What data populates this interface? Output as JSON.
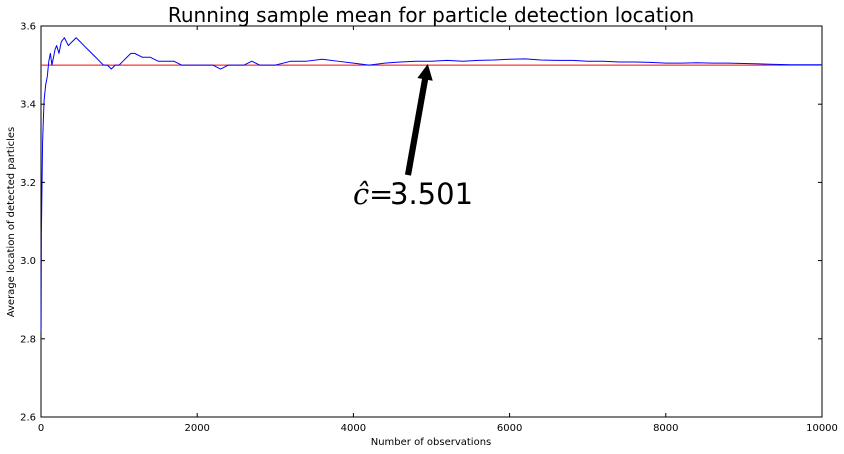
{
  "chart_data": {
    "type": "line",
    "title": "Running sample mean for particle detection location",
    "xlabel": "Number of observations",
    "ylabel": "Average location of detected particles",
    "xlim": [
      0,
      10000
    ],
    "ylim": [
      2.6,
      3.6
    ],
    "xticks": [
      "0",
      "2000",
      "4000",
      "6000",
      "8000",
      "10000"
    ],
    "yticks": [
      "2.6",
      "2.8",
      "3.0",
      "3.2",
      "3.4",
      "3.6"
    ],
    "grid": false,
    "series": [
      {
        "color": "#0000ff",
        "x": [
          1,
          5,
          10,
          20,
          30,
          40,
          50,
          60,
          70,
          80,
          90,
          100,
          120,
          140,
          160,
          180,
          200,
          230,
          260,
          300,
          350,
          400,
          450,
          500,
          550,
          600,
          650,
          700,
          750,
          800,
          850,
          900,
          950,
          1000,
          1050,
          1100,
          1150,
          1200,
          1300,
          1400,
          1500,
          1600,
          1700,
          1800,
          1900,
          2000,
          2100,
          2200,
          2300,
          2400,
          2500,
          2600,
          2700,
          2800,
          2900,
          3000,
          3200,
          3400,
          3600,
          3800,
          4000,
          4200,
          4400,
          4600,
          4800,
          5000,
          5200,
          5400,
          5600,
          5800,
          6000,
          6200,
          6400,
          6600,
          6800,
          7000,
          7200,
          7400,
          7600,
          7800,
          8000,
          8200,
          8400,
          8600,
          8800,
          9000,
          9200,
          9400,
          9600,
          9800,
          10000
        ],
        "y": [
          2.82,
          3.07,
          3.15,
          3.3,
          3.36,
          3.41,
          3.43,
          3.45,
          3.46,
          3.47,
          3.49,
          3.51,
          3.53,
          3.5,
          3.52,
          3.54,
          3.55,
          3.53,
          3.56,
          3.57,
          3.55,
          3.56,
          3.57,
          3.56,
          3.55,
          3.54,
          3.53,
          3.52,
          3.51,
          3.5,
          3.5,
          3.49,
          3.5,
          3.5,
          3.51,
          3.52,
          3.53,
          3.53,
          3.52,
          3.52,
          3.51,
          3.51,
          3.51,
          3.5,
          3.5,
          3.5,
          3.5,
          3.5,
          3.49,
          3.5,
          3.5,
          3.5,
          3.51,
          3.5,
          3.5,
          3.5,
          3.51,
          3.51,
          3.515,
          3.51,
          3.505,
          3.5,
          3.505,
          3.508,
          3.51,
          3.51,
          3.512,
          3.51,
          3.512,
          3.513,
          3.515,
          3.516,
          3.513,
          3.512,
          3.512,
          3.51,
          3.51,
          3.508,
          3.508,
          3.507,
          3.505,
          3.505,
          3.506,
          3.505,
          3.505,
          3.504,
          3.503,
          3.502,
          3.501,
          3.501,
          3.501
        ]
      }
    ],
    "reference_line": {
      "y": 3.5,
      "color": "#ff0000"
    },
    "annotation": {
      "math": "ĉ",
      "equals": "=",
      "value": "3.501",
      "arrow_text_at": {
        "x": 4700,
        "y": 3.22
      },
      "arrow_tip_at": {
        "x": 4950,
        "y": 3.5
      }
    }
  }
}
